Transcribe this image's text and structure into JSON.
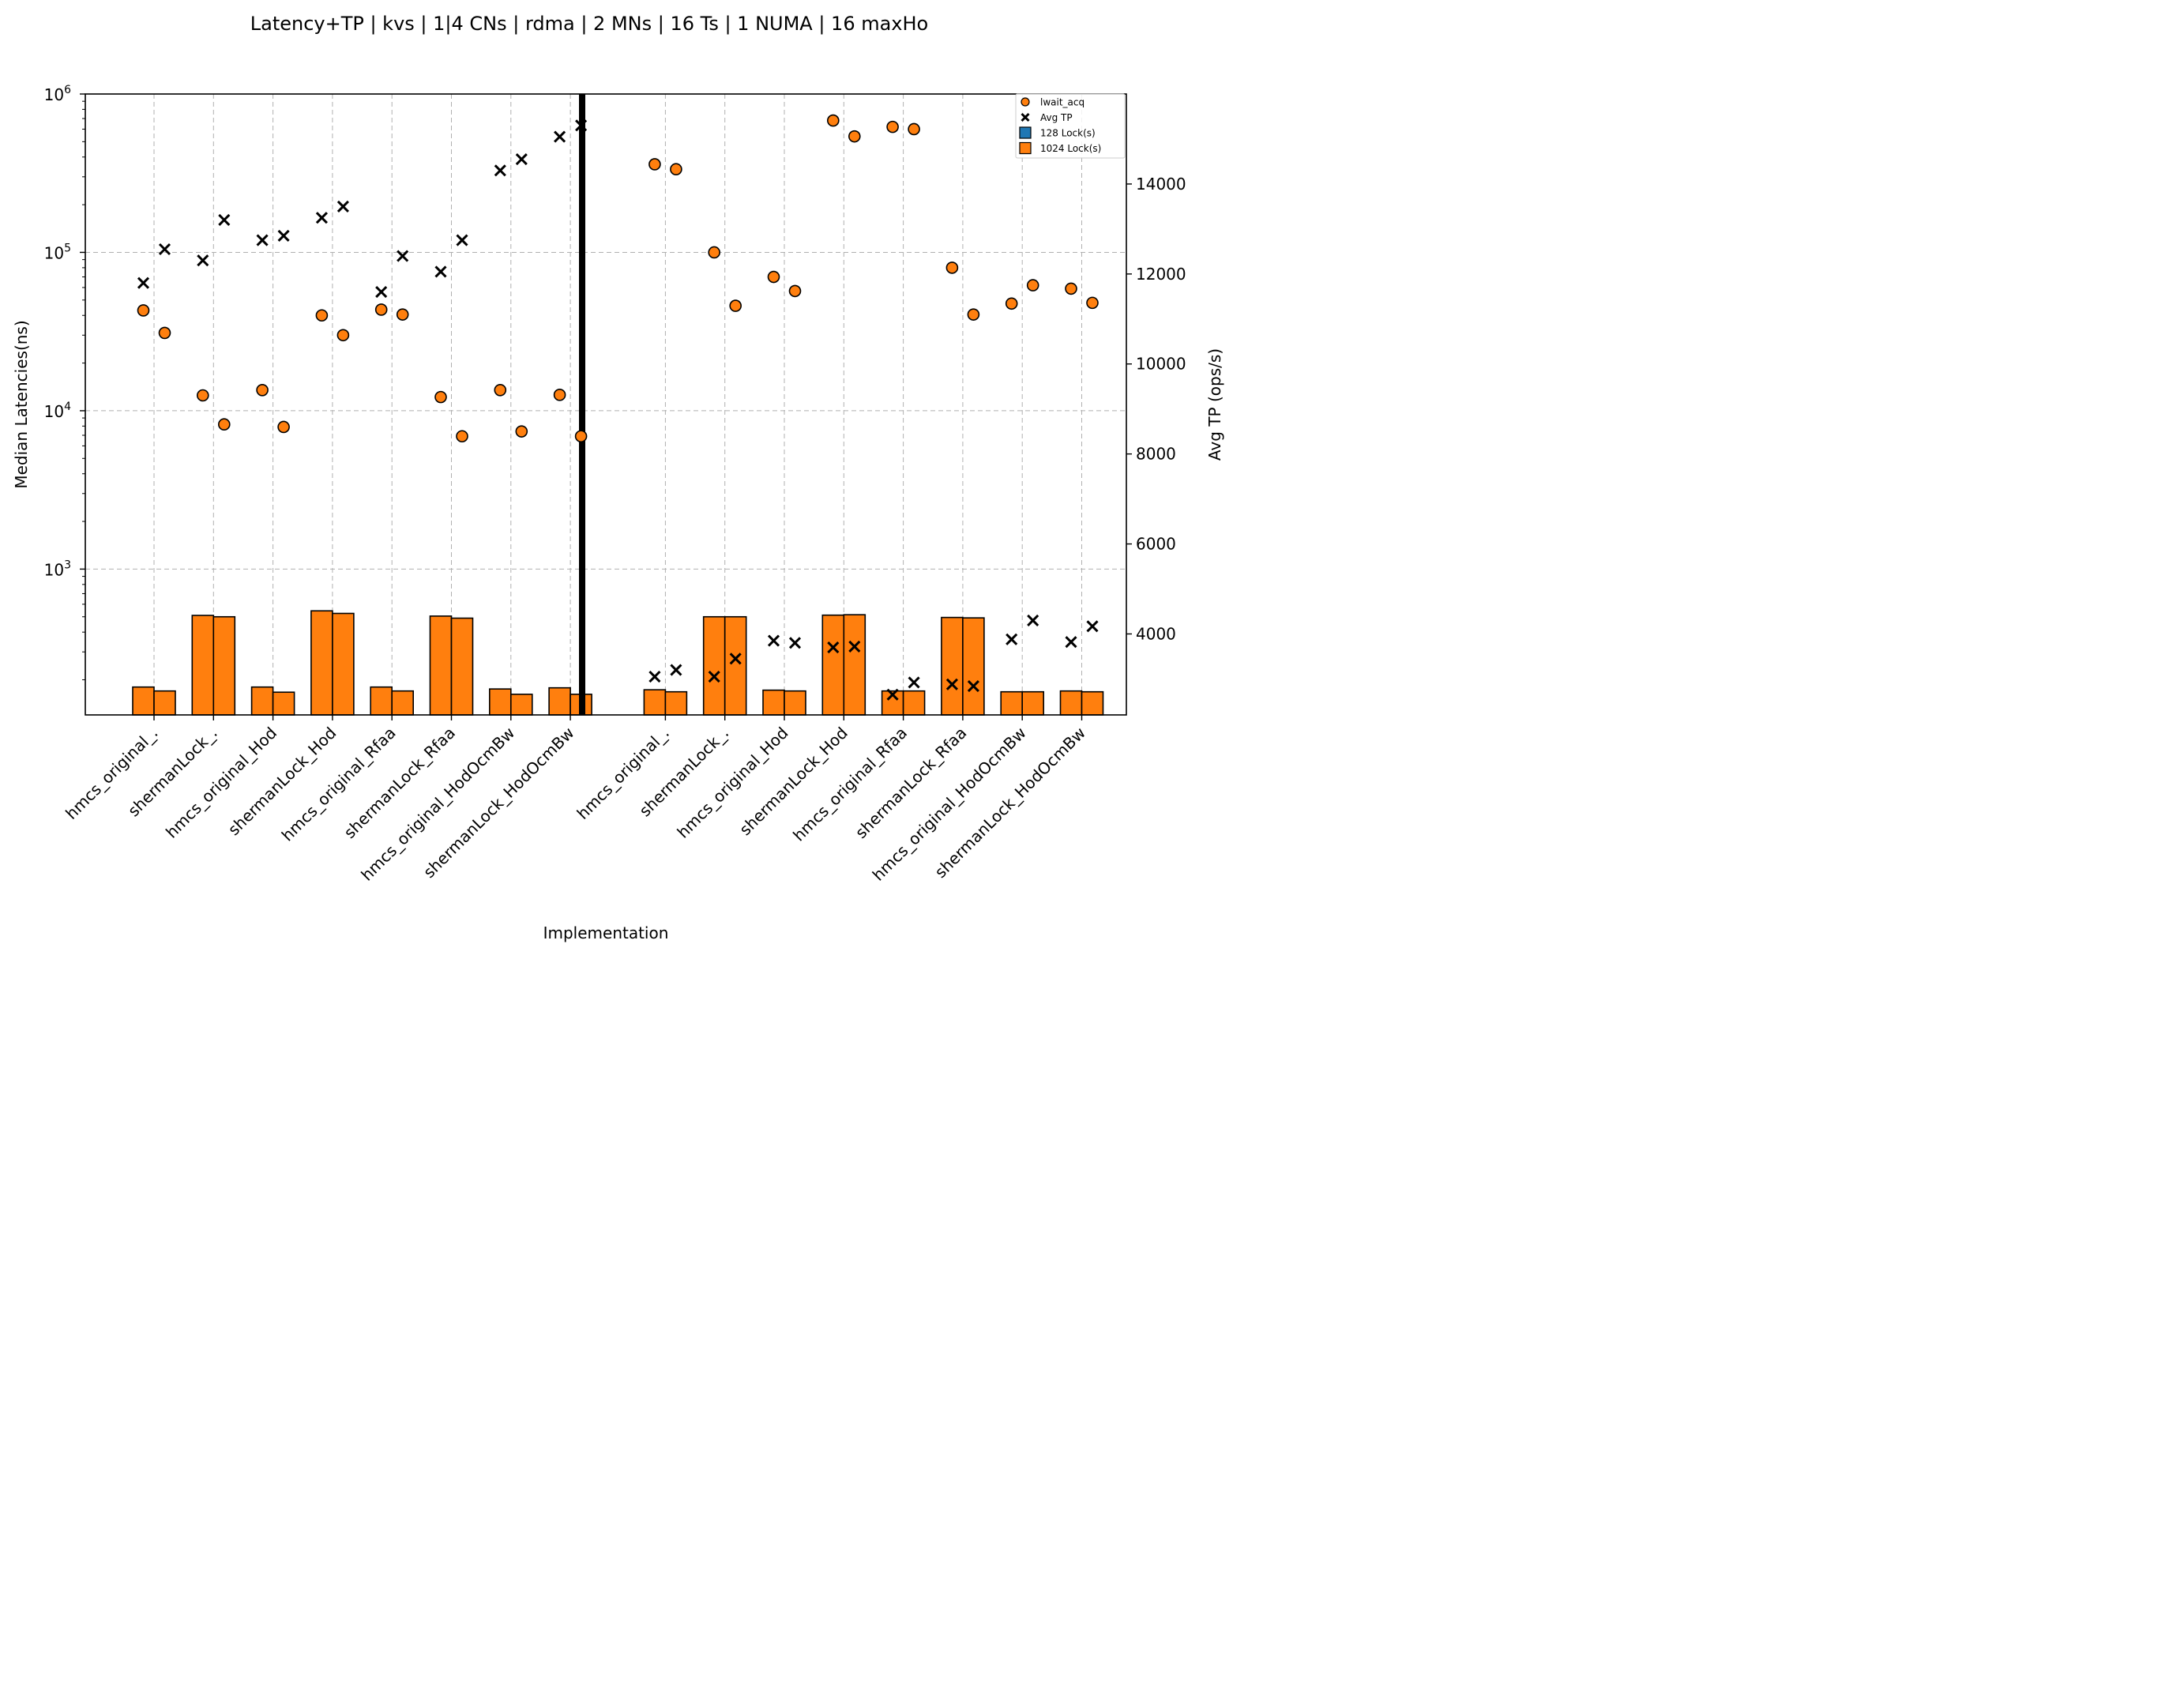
{
  "chart_data": {
    "type": "bar",
    "title": "Latency+TP | kvs | 1|4 CNs | rdma | 2 MNs | 16 Ts | 1 NUMA | 16 maxHo",
    "xlabel": "Implementation",
    "ylabel": "Median Latencies(ns)",
    "ylabel_right": "Avg TP (ops/s)",
    "yscale": "log",
    "ylim": [
      120,
      1000000
    ],
    "ylim_right": [
      2200,
      16000
    ],
    "left_ticks": [
      {
        "value": 1000,
        "label": "10^3",
        "mantissa": "10",
        "exp": "3"
      },
      {
        "value": 10000,
        "label": "10^4",
        "mantissa": "10",
        "exp": "4"
      },
      {
        "value": 100000,
        "label": "10^5",
        "mantissa": "10",
        "exp": "5"
      },
      {
        "value": 1000000,
        "label": "10^6",
        "mantissa": "10",
        "exp": "6"
      }
    ],
    "right_ticks": [
      4000,
      6000,
      8000,
      10000,
      12000,
      14000
    ],
    "grid": true,
    "legend_position": "top-right",
    "legend": [
      {
        "label": "lwait_acq",
        "marker": "circle"
      },
      {
        "label": "Avg TP",
        "marker": "x"
      },
      {
        "label": "128 Lock(s)",
        "marker": "square",
        "color": "#1f77b4"
      },
      {
        "label": "1024 Lock(s)",
        "marker": "square",
        "color": "#ff7f0e"
      }
    ],
    "categories": [
      "hmcs_original_.",
      "shermanLock_.",
      "hmcs_original_Hod",
      "shermanLock_Hod",
      "hmcs_original_Rfaa",
      "shermanLock_Rfaa",
      "hmcs_original_HodOcmBw",
      "shermanLock_HodOcmBw",
      "hmcs_original_.",
      "shermanLock_.",
      "hmcs_original_Hod",
      "shermanLock_Hod",
      "hmcs_original_Rfaa",
      "shermanLock_Rfaa",
      "hmcs_original_HodOcmBw",
      "shermanLock_HodOcmBw"
    ],
    "series": [
      {
        "name": "1024 Lock(s)",
        "kind": "bar",
        "values": [
          [
            180,
            170
          ],
          [
            510,
            500
          ],
          [
            180,
            167
          ],
          [
            545,
            525
          ],
          [
            180,
            170
          ],
          [
            505,
            490
          ],
          [
            175,
            162
          ],
          [
            178,
            162
          ],
          [
            173,
            168
          ],
          [
            500,
            500
          ],
          [
            172,
            170
          ],
          [
            512,
            515
          ],
          [
            170,
            170
          ],
          [
            495,
            492
          ],
          [
            168,
            168
          ],
          [
            170,
            168
          ]
        ]
      },
      {
        "name": "lwait_acq",
        "kind": "scatter",
        "values": [
          [
            43000,
            31000
          ],
          [
            12500,
            8200
          ],
          [
            13500,
            7900
          ],
          [
            40000,
            30000
          ],
          [
            43500,
            40500
          ],
          [
            12200,
            6900
          ],
          [
            13500,
            7400
          ],
          [
            12600,
            6900
          ],
          [
            360000,
            335000
          ],
          [
            100000,
            46000
          ],
          [
            70000,
            57000
          ],
          [
            680000,
            540000
          ],
          [
            620000,
            600000
          ],
          [
            80000,
            40500
          ],
          [
            47500,
            62000
          ],
          [
            59000,
            48000
          ]
        ]
      },
      {
        "name": "Avg TP",
        "kind": "scatter",
        "axis": "right",
        "values": [
          [
            11800,
            12550
          ],
          [
            12300,
            13200
          ],
          [
            12750,
            12850
          ],
          [
            13250,
            13500
          ],
          [
            11600,
            12400
          ],
          [
            12050,
            12750
          ],
          [
            14300,
            14550
          ],
          [
            15050,
            15300
          ],
          [
            3050,
            3200
          ],
          [
            3050,
            3450
          ],
          [
            3850,
            3800
          ],
          [
            3700,
            3720
          ],
          [
            2650,
            2920
          ],
          [
            2880,
            2840
          ],
          [
            3880,
            4300
          ],
          [
            3820,
            4170
          ]
        ]
      }
    ]
  }
}
